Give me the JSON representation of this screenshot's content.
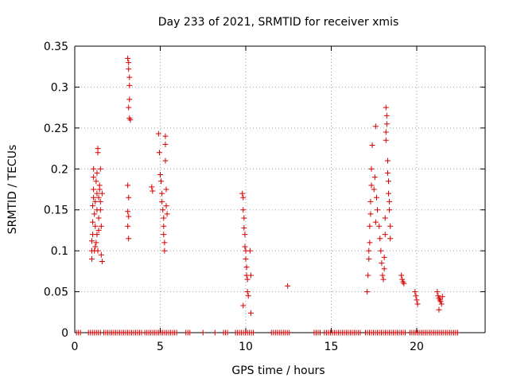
{
  "chart_data": {
    "type": "scatter",
    "title": "Day 233 of 2021, SRMTID for receiver xmis",
    "xlabel": "GPS time / hours",
    "ylabel": "SRMTID / TECUs",
    "xlim": [
      0,
      24
    ],
    "ylim": [
      0,
      0.35
    ],
    "x_ticks": [
      0,
      5,
      10,
      15,
      20
    ],
    "y_ticks": [
      0,
      0.05,
      0.1,
      0.15,
      0.2,
      0.25,
      0.3,
      0.35
    ],
    "x_tick_labels": [
      "0",
      "5",
      "10",
      "15",
      "20"
    ],
    "y_tick_labels": [
      "0",
      "0.05",
      "0.1",
      "0.15",
      "0.2",
      "0.25",
      "0.3",
      "0.35"
    ],
    "grid": true,
    "marker": "+",
    "marker_color": "#d40000",
    "zero_line": {
      "y": 0,
      "segments": [
        [
          0.1,
          0.4
        ],
        [
          0.8,
          1.5
        ],
        [
          1.7,
          4.0
        ],
        [
          4.1,
          6.0
        ],
        [
          6.5,
          6.8
        ],
        [
          7.5,
          7.6
        ],
        [
          8.2,
          8.3
        ],
        [
          8.7,
          9.0
        ],
        [
          9.4,
          10.5
        ],
        [
          11.5,
          12.6
        ],
        [
          14.0,
          14.4
        ],
        [
          14.6,
          16.7
        ],
        [
          17.0,
          19.4
        ],
        [
          19.6,
          22.5
        ]
      ]
    },
    "series": [
      {
        "name": "SRMTID",
        "points": [
          [
            1.0,
            0.09
          ],
          [
            1.0,
            0.1
          ],
          [
            1.0,
            0.112
          ],
          [
            1.05,
            0.12
          ],
          [
            1.05,
            0.135
          ],
          [
            1.05,
            0.155
          ],
          [
            1.1,
            0.165
          ],
          [
            1.1,
            0.175
          ],
          [
            1.1,
            0.19
          ],
          [
            1.1,
            0.2
          ],
          [
            1.15,
            0.1
          ],
          [
            1.15,
            0.145
          ],
          [
            1.2,
            0.105
          ],
          [
            1.2,
            0.13
          ],
          [
            1.2,
            0.16
          ],
          [
            1.25,
            0.11
          ],
          [
            1.25,
            0.185
          ],
          [
            1.3,
            0.12
          ],
          [
            1.3,
            0.15
          ],
          [
            1.3,
            0.17
          ],
          [
            1.3,
            0.195
          ],
          [
            1.35,
            0.225
          ],
          [
            1.35,
            0.22
          ],
          [
            1.35,
            0.1
          ],
          [
            1.4,
            0.125
          ],
          [
            1.4,
            0.14
          ],
          [
            1.4,
            0.165
          ],
          [
            1.45,
            0.175
          ],
          [
            1.45,
            0.18
          ],
          [
            1.5,
            0.16
          ],
          [
            1.5,
            0.15
          ],
          [
            1.5,
            0.2
          ],
          [
            1.55,
            0.13
          ],
          [
            1.55,
            0.095
          ],
          [
            1.6,
            0.087
          ],
          [
            1.6,
            0.17
          ],
          [
            3.1,
            0.335
          ],
          [
            3.15,
            0.33
          ],
          [
            3.15,
            0.322
          ],
          [
            3.2,
            0.312
          ],
          [
            3.2,
            0.302
          ],
          [
            3.2,
            0.285
          ],
          [
            3.15,
            0.275
          ],
          [
            3.2,
            0.262
          ],
          [
            3.25,
            0.26
          ],
          [
            3.1,
            0.18
          ],
          [
            3.15,
            0.165
          ],
          [
            3.1,
            0.148
          ],
          [
            3.15,
            0.142
          ],
          [
            3.1,
            0.13
          ],
          [
            3.15,
            0.115
          ],
          [
            4.5,
            0.178
          ],
          [
            4.55,
            0.173
          ],
          [
            4.9,
            0.243
          ],
          [
            4.95,
            0.22
          ],
          [
            5.0,
            0.193
          ],
          [
            5.05,
            0.185
          ],
          [
            5.1,
            0.17
          ],
          [
            5.1,
            0.16
          ],
          [
            5.15,
            0.15
          ],
          [
            5.2,
            0.14
          ],
          [
            5.2,
            0.13
          ],
          [
            5.2,
            0.12
          ],
          [
            5.25,
            0.11
          ],
          [
            5.25,
            0.1
          ],
          [
            5.3,
            0.24
          ],
          [
            5.3,
            0.23
          ],
          [
            5.3,
            0.21
          ],
          [
            5.35,
            0.175
          ],
          [
            5.35,
            0.155
          ],
          [
            5.4,
            0.145
          ],
          [
            9.8,
            0.17
          ],
          [
            9.85,
            0.165
          ],
          [
            9.85,
            0.15
          ],
          [
            9.9,
            0.14
          ],
          [
            9.9,
            0.128
          ],
          [
            9.95,
            0.12
          ],
          [
            9.95,
            0.105
          ],
          [
            10.0,
            0.1
          ],
          [
            10.0,
            0.09
          ],
          [
            10.05,
            0.08
          ],
          [
            10.05,
            0.07
          ],
          [
            10.1,
            0.065
          ],
          [
            9.85,
            0.033
          ],
          [
            10.1,
            0.05
          ],
          [
            10.15,
            0.045
          ],
          [
            10.3,
            0.07
          ],
          [
            10.3,
            0.024
          ],
          [
            10.25,
            0.1
          ],
          [
            12.45,
            0.057
          ],
          [
            17.1,
            0.05
          ],
          [
            17.15,
            0.07
          ],
          [
            17.2,
            0.09
          ],
          [
            17.2,
            0.1
          ],
          [
            17.25,
            0.11
          ],
          [
            17.25,
            0.13
          ],
          [
            17.3,
            0.145
          ],
          [
            17.3,
            0.16
          ],
          [
            17.35,
            0.18
          ],
          [
            17.35,
            0.2
          ],
          [
            17.4,
            0.229
          ],
          [
            17.5,
            0.175
          ],
          [
            17.55,
            0.19
          ],
          [
            17.6,
            0.252
          ],
          [
            17.6,
            0.135
          ],
          [
            17.65,
            0.165
          ],
          [
            17.7,
            0.15
          ],
          [
            17.8,
            0.13
          ],
          [
            17.85,
            0.115
          ],
          [
            17.9,
            0.1
          ],
          [
            17.95,
            0.085
          ],
          [
            18.0,
            0.07
          ],
          [
            18.05,
            0.065
          ],
          [
            18.1,
            0.078
          ],
          [
            18.1,
            0.092
          ],
          [
            18.15,
            0.12
          ],
          [
            18.15,
            0.14
          ],
          [
            18.2,
            0.235
          ],
          [
            18.2,
            0.245
          ],
          [
            18.25,
            0.255
          ],
          [
            18.25,
            0.265
          ],
          [
            18.2,
            0.275
          ],
          [
            18.3,
            0.21
          ],
          [
            18.3,
            0.195
          ],
          [
            18.35,
            0.185
          ],
          [
            18.35,
            0.17
          ],
          [
            18.4,
            0.16
          ],
          [
            18.4,
            0.15
          ],
          [
            18.45,
            0.13
          ],
          [
            18.45,
            0.115
          ],
          [
            19.1,
            0.07
          ],
          [
            19.15,
            0.065
          ],
          [
            19.2,
            0.062
          ],
          [
            19.25,
            0.06
          ],
          [
            19.9,
            0.05
          ],
          [
            19.95,
            0.045
          ],
          [
            20.0,
            0.04
          ],
          [
            20.05,
            0.035
          ],
          [
            21.2,
            0.05
          ],
          [
            21.25,
            0.045
          ],
          [
            21.3,
            0.042
          ],
          [
            21.35,
            0.04
          ],
          [
            21.4,
            0.038
          ],
          [
            21.45,
            0.035
          ],
          [
            21.3,
            0.028
          ],
          [
            21.5,
            0.044
          ]
        ]
      }
    ]
  }
}
